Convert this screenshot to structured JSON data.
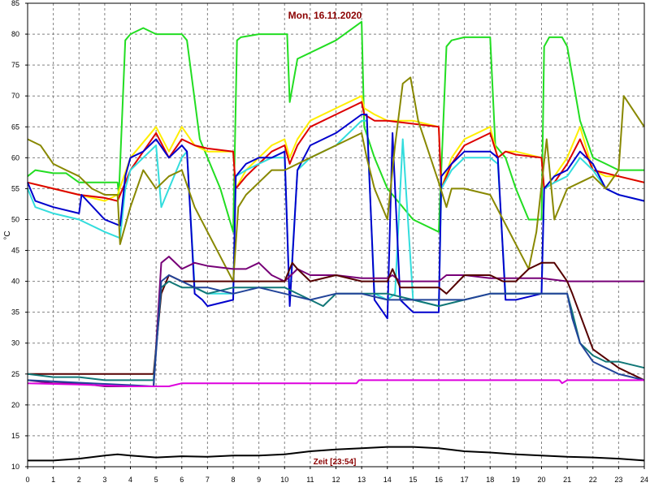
{
  "chart_data": {
    "type": "line",
    "title": "Mon, 16.11.2020",
    "ylabel": "°C",
    "xlabel": "Zeit [23:54]",
    "xlim": [
      0,
      24
    ],
    "ylim": [
      10,
      85
    ],
    "xticks": [
      0,
      1,
      2,
      3,
      4,
      5,
      6,
      7,
      8,
      9,
      10,
      11,
      12,
      13,
      14,
      15,
      16,
      17,
      18,
      19,
      20,
      21,
      22,
      23,
      24
    ],
    "yticks": [
      10,
      15,
      20,
      25,
      30,
      35,
      40,
      45,
      50,
      55,
      60,
      65,
      70,
      75,
      80,
      85
    ],
    "grid": true,
    "series": [
      {
        "color": "#22dd22",
        "x": [
          0,
          0.3,
          1,
          1.5,
          2,
          3.5,
          3.55,
          3.8,
          4,
          4.5,
          5,
          6,
          6.2,
          6.7,
          7,
          7.5,
          8,
          8.15,
          8.3,
          9,
          9.5,
          10.1,
          10.2,
          10.5,
          11,
          11.5,
          12,
          13,
          13.1,
          13.5,
          14,
          15,
          16,
          16.3,
          16.5,
          17,
          18,
          18.2,
          18.6,
          19,
          19.5,
          20,
          20.1,
          20.3,
          20.8,
          21,
          21.5,
          22,
          22.5,
          23,
          24
        ],
        "y": [
          57,
          58,
          57.5,
          57.5,
          56,
          56,
          54,
          79,
          80,
          81,
          80,
          80,
          79,
          63,
          60,
          55,
          48,
          79,
          79.5,
          80,
          80,
          80,
          69,
          76,
          77,
          78,
          79,
          82,
          65,
          60,
          55,
          50,
          48,
          78,
          79,
          79.5,
          79.5,
          62,
          60,
          55,
          50,
          50,
          78,
          79.5,
          79.5,
          78,
          66,
          60,
          59,
          58,
          58
        ]
      },
      {
        "color": "#ffee00",
        "x": [
          0,
          1,
          2,
          3,
          3.5,
          4,
          5,
          5.5,
          6,
          6.5,
          7,
          8,
          8.1,
          8.5,
          9,
          9.5,
          10,
          10.2,
          10.5,
          11,
          12,
          13,
          13.1,
          13.5,
          14,
          15,
          16,
          16.1,
          16.5,
          17,
          18,
          18.3,
          18.6,
          19,
          20,
          20.1,
          20.5,
          21,
          21.5,
          22,
          22.5,
          23,
          24
        ],
        "y": [
          56,
          55,
          54,
          53,
          54,
          60,
          65,
          61,
          65,
          62,
          61,
          61,
          55,
          58,
          60,
          62,
          63,
          60,
          63,
          66,
          68,
          70,
          68,
          67,
          66,
          66,
          65,
          55,
          60,
          63,
          65,
          60,
          61,
          61,
          60,
          55,
          57,
          60,
          65,
          58,
          57,
          57,
          56
        ]
      },
      {
        "color": "#dd0000",
        "x": [
          0,
          1,
          2,
          3,
          3.5,
          4,
          5,
          5.5,
          6,
          6.5,
          7,
          8,
          8.1,
          8.5,
          9,
          9.5,
          10,
          10.2,
          10.5,
          11,
          12,
          13,
          13.1,
          13.5,
          14,
          15,
          16,
          16.1,
          16.5,
          17,
          18,
          18.3,
          18.6,
          19,
          20,
          20.1,
          20.5,
          21,
          21.5,
          22,
          22.5,
          23,
          24
        ],
        "y": [
          56,
          55,
          54,
          53.5,
          53,
          58,
          64,
          60,
          63,
          62,
          61.5,
          61,
          55,
          57,
          59,
          61,
          62,
          59,
          62,
          65,
          67,
          69,
          67,
          66,
          66,
          65.5,
          65,
          55,
          59,
          62,
          64,
          60,
          61,
          60.5,
          60,
          55,
          56,
          59,
          63,
          58,
          57.5,
          57,
          56
        ]
      },
      {
        "color": "#33dddd",
        "x": [
          0,
          0.3,
          1,
          2,
          3,
          3.6,
          3.8,
          4,
          4.5,
          5,
          5.2,
          5.5,
          6,
          6.2,
          6.5,
          7,
          8,
          8.1,
          8.5,
          9,
          9.5,
          10,
          10.2,
          10.5,
          11,
          12,
          13,
          13.2,
          13.5,
          14,
          14.3,
          14.6,
          15,
          16,
          16.1,
          16.5,
          17,
          17.5,
          18,
          18.3,
          18.6,
          19,
          20,
          20.1,
          20.5,
          21,
          21.5,
          22,
          22.5,
          23,
          24
        ],
        "y": [
          55,
          52,
          51,
          50,
          48,
          47,
          55,
          58,
          60,
          62,
          52,
          55,
          60,
          61,
          39,
          38,
          38,
          57,
          58,
          59,
          60,
          60,
          37,
          58,
          60,
          62,
          66,
          66,
          38,
          37,
          38,
          63,
          37,
          36,
          55,
          58,
          60,
          60,
          60,
          59,
          38,
          38,
          38,
          55,
          56,
          57,
          60,
          58,
          55,
          54,
          53
        ]
      },
      {
        "color": "#0000cc",
        "x": [
          0,
          0.3,
          1,
          2,
          2.1,
          3,
          3.6,
          3.8,
          4,
          4.5,
          5,
          5.5,
          6,
          6.2,
          6.5,
          6.8,
          7,
          8,
          8.1,
          8.5,
          9,
          9.5,
          10,
          10.2,
          10.5,
          11,
          12,
          13,
          13.2,
          13.5,
          14,
          14.2,
          14.5,
          15,
          16,
          16.1,
          16.5,
          17,
          17.5,
          18,
          18.3,
          18.6,
          19,
          20,
          20.1,
          20.5,
          21,
          21.5,
          22,
          22.5,
          23,
          24
        ],
        "y": [
          56,
          53,
          52,
          51,
          54,
          50,
          49,
          57,
          60,
          61,
          63,
          60,
          62,
          61,
          38,
          37,
          36,
          37,
          57,
          59,
          60,
          60,
          61,
          36,
          58,
          62,
          64,
          67,
          67,
          37,
          34,
          64,
          37,
          35,
          35,
          57,
          59,
          61,
          61,
          61,
          60,
          37,
          37,
          38,
          55,
          57,
          58,
          61,
          59,
          55,
          54,
          53
        ]
      },
      {
        "color": "#888800",
        "x": [
          0,
          0.5,
          1,
          1.5,
          2,
          2.5,
          3,
          3.5,
          3.6,
          4,
          4.5,
          5,
          5.5,
          6,
          6.5,
          7,
          7.5,
          8,
          8.2,
          8.5,
          9,
          9.5,
          10,
          11,
          12,
          13,
          13.2,
          13.5,
          14,
          14.3,
          14.6,
          14.9,
          15.2,
          16,
          16.3,
          16.5,
          17,
          18,
          18.5,
          19,
          19.5,
          19.8,
          20.2,
          20.5,
          21,
          21.5,
          22,
          22.5,
          23,
          23.2,
          24
        ],
        "y": [
          63,
          62,
          59,
          58,
          57,
          55,
          54,
          54,
          46,
          52,
          58,
          55,
          57,
          58,
          52,
          48,
          44,
          40,
          52,
          54,
          56,
          58,
          58,
          60,
          62,
          64,
          60,
          55,
          50,
          62,
          72,
          73,
          66,
          56,
          52,
          55,
          55,
          54,
          50,
          46,
          42,
          48,
          63,
          50,
          55,
          56,
          57,
          55,
          58,
          70,
          65
        ]
      },
      {
        "color": "#770077",
        "x": [
          0,
          1,
          2,
          3,
          4,
          4.9,
          5.2,
          5.5,
          6,
          6.5,
          7,
          8,
          8.5,
          9,
          9.5,
          10,
          10.5,
          11,
          12,
          13,
          14,
          14.2,
          14.5,
          15,
          16,
          16.3,
          16.6,
          17,
          18,
          19,
          20,
          21,
          21.2,
          22,
          23,
          24
        ],
        "y": [
          24,
          23.5,
          23.5,
          23,
          23,
          23,
          43,
          44,
          42,
          43,
          42.5,
          42,
          42,
          43,
          41,
          40,
          42,
          41,
          41,
          40.5,
          40.5,
          41,
          40,
          40,
          40,
          41,
          41,
          41,
          40.5,
          40.5,
          40.5,
          40,
          40,
          40,
          40,
          40
        ]
      },
      {
        "color": "#550000",
        "x": [
          0,
          4.9,
          5.2,
          5.5,
          6,
          7,
          8,
          9,
          10,
          10.3,
          10.5,
          11,
          12,
          13,
          14,
          14.2,
          14.5,
          15,
          16,
          16.3,
          17,
          18,
          18.5,
          19,
          19.5,
          20,
          20.5,
          21,
          21.2,
          22,
          23,
          24
        ],
        "y": [
          25,
          25,
          38,
          41,
          40,
          40,
          40,
          40,
          40,
          43,
          42,
          40,
          41,
          40,
          40,
          42,
          39,
          39,
          39,
          38,
          41,
          41,
          40,
          40,
          42,
          43,
          43,
          40,
          38,
          29,
          26,
          24
        ]
      },
      {
        "color": "#117777",
        "x": [
          0,
          1,
          2,
          3,
          4,
          4.9,
          5.2,
          5.5,
          6,
          6.5,
          7,
          8,
          9,
          10,
          11,
          11.5,
          12,
          13,
          14,
          15,
          16,
          17,
          18,
          19,
          20,
          20.5,
          21,
          21.2,
          21.5,
          22,
          22.5,
          23,
          24
        ],
        "y": [
          25,
          24.5,
          24.5,
          24,
          24,
          24,
          39,
          40,
          39,
          39,
          38,
          39,
          39,
          39,
          37,
          36,
          38,
          38,
          38,
          37,
          36,
          37,
          38,
          38,
          38,
          38,
          38,
          35,
          30,
          28,
          27,
          27,
          26
        ]
      },
      {
        "color": "#224499",
        "x": [
          0,
          1,
          2,
          3,
          4,
          4.9,
          5.2,
          5.5,
          6,
          6.5,
          7,
          8,
          9,
          10,
          11,
          12,
          13,
          14,
          15,
          16,
          17,
          18,
          19,
          20,
          20.5,
          21,
          21.2,
          21.5,
          22,
          22.5,
          23,
          24
        ],
        "y": [
          24,
          23.8,
          23.6,
          23.4,
          23.2,
          23,
          40,
          41,
          40,
          39,
          39,
          38,
          39,
          38,
          37,
          38,
          38,
          37,
          37,
          37,
          37,
          38,
          38,
          38,
          38,
          38,
          34,
          30,
          27,
          26,
          25,
          24
        ]
      },
      {
        "color": "#dd00dd",
        "x": [
          0,
          2,
          4,
          5,
          5.5,
          6,
          7,
          8,
          10,
          12,
          12.8,
          12.9,
          13.1,
          14,
          16,
          18,
          20,
          20.7,
          20.8,
          21,
          22,
          24
        ],
        "y": [
          23.5,
          23.3,
          23,
          23,
          23,
          23.5,
          23.5,
          23.5,
          23.5,
          23.5,
          23.5,
          24,
          24,
          24,
          24,
          24,
          24,
          24,
          23.5,
          24,
          24,
          24
        ]
      },
      {
        "color": "#000000",
        "x": [
          0,
          1,
          2,
          3,
          3.5,
          4,
          5,
          6,
          7,
          8,
          9,
          10,
          11,
          12,
          13,
          14,
          15,
          16,
          17,
          18,
          19,
          20,
          21,
          22,
          23,
          24
        ],
        "y": [
          11,
          11,
          11.3,
          11.8,
          12,
          11.8,
          11.5,
          11.7,
          11.6,
          11.8,
          11.8,
          12,
          12.5,
          12.8,
          13,
          13.2,
          13.2,
          13,
          12.5,
          12.3,
          12,
          11.8,
          11.6,
          11.5,
          11.3,
          11
        ]
      }
    ]
  }
}
